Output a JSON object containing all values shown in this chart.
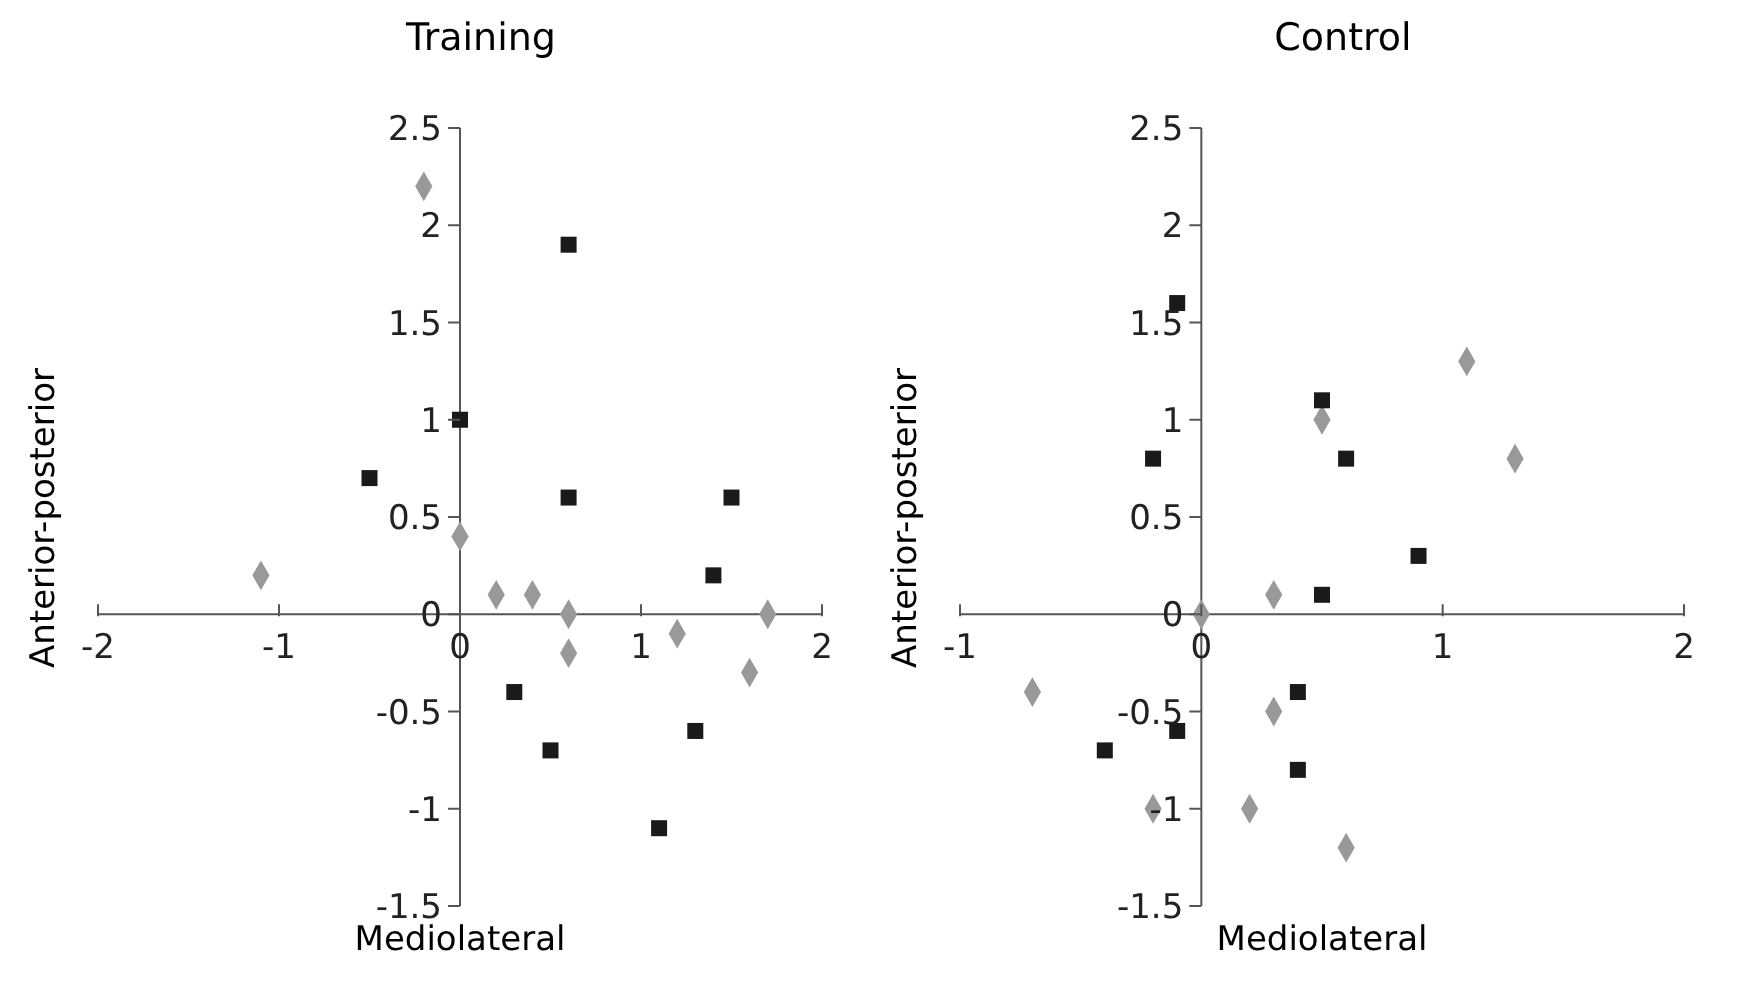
{
  "chart_data": [
    {
      "type": "scatter",
      "title": "Training",
      "xlabel": "Mediolateral",
      "ylabel": "Anterior-posterior",
      "xlim": [
        -2,
        2
      ],
      "xticks": [
        -2,
        -1,
        0,
        1,
        2
      ],
      "ylim": [
        -1.5,
        2.5
      ],
      "yticks": [
        -1.5,
        -1,
        -0.5,
        0,
        0.5,
        1,
        1.5,
        2,
        2.5
      ],
      "grid": false,
      "legend": false,
      "series": [
        {
          "color": "#999999",
          "marker": "diamond",
          "x": [
            -0.2,
            -1.1,
            0,
            0.2,
            0.4,
            0.6,
            0.6,
            1.2,
            1.6,
            1.7
          ],
          "values": [
            2.2,
            0.2,
            0.4,
            0.1,
            0.1,
            0,
            -0.2,
            -0.1,
            -0.3,
            0
          ]
        },
        {
          "color": "#1a1a1a",
          "marker": "square",
          "x": [
            0.6,
            0,
            -0.5,
            0.6,
            1.5,
            1.4,
            0.3,
            0.5,
            1.3,
            1.1
          ],
          "values": [
            1.9,
            1.0,
            0.7,
            0.6,
            0.6,
            0.2,
            -0.4,
            -0.7,
            -0.6,
            -1.1
          ]
        }
      ]
    },
    {
      "type": "scatter",
      "title": "Control",
      "xlabel": "Mediolateral",
      "ylabel": "Anterior-posterior",
      "xlim": [
        -1,
        2
      ],
      "xticks": [
        -1,
        0,
        1,
        2
      ],
      "ylim": [
        -1.5,
        2.5
      ],
      "yticks": [
        -1.5,
        -1,
        -0.5,
        0,
        0.5,
        1,
        1.5,
        2,
        2.5
      ],
      "grid": false,
      "legend": false,
      "series": [
        {
          "color": "#999999",
          "marker": "diamond",
          "x": [
            -0.7,
            0,
            0.3,
            0.5,
            1.1,
            1.3,
            0.3,
            -0.2,
            0.2,
            0.6
          ],
          "values": [
            -0.4,
            0,
            0.1,
            1.0,
            1.3,
            0.8,
            -0.5,
            -1.0,
            -1.0,
            -1.2
          ]
        },
        {
          "color": "#1a1a1a",
          "marker": "square",
          "x": [
            -0.1,
            -0.2,
            0.5,
            0.6,
            0.9,
            0.5,
            0.4,
            -0.1,
            -0.4,
            0.4
          ],
          "values": [
            1.6,
            0.8,
            1.1,
            0.8,
            0.3,
            0.1,
            -0.4,
            -0.6,
            -0.7,
            -0.8
          ]
        }
      ]
    }
  ]
}
